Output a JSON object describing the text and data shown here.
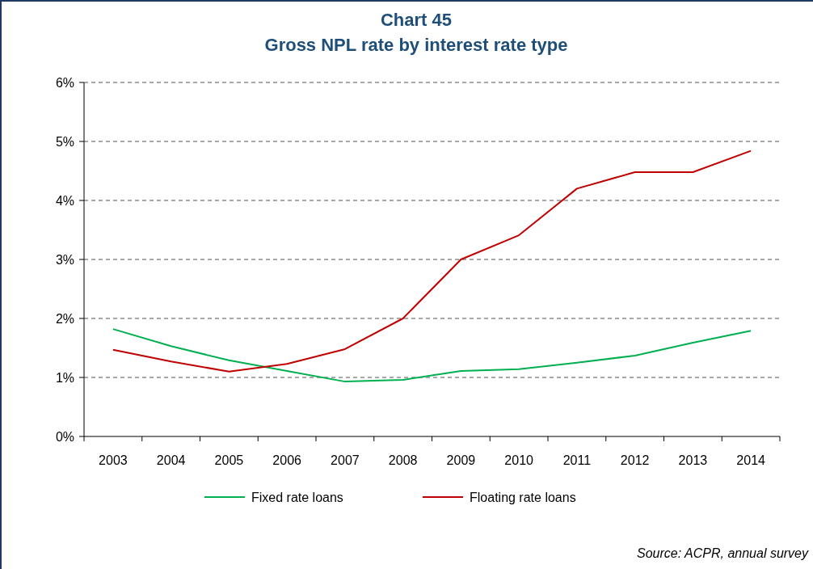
{
  "chart_data": {
    "type": "line",
    "title": "Chart 45",
    "subtitle": "Gross NPL rate by interest rate type",
    "categories": [
      "2003",
      "2004",
      "2005",
      "2006",
      "2007",
      "2008",
      "2009",
      "2010",
      "2011",
      "2012",
      "2013",
      "2014"
    ],
    "series": [
      {
        "name": "Fixed rate loans",
        "color": "#00b050",
        "values": [
          1.82,
          1.53,
          1.29,
          1.11,
          0.93,
          0.96,
          1.11,
          1.14,
          1.25,
          1.37,
          1.59,
          1.79
        ]
      },
      {
        "name": "Floating rate loans",
        "color": "#c00000",
        "values": [
          1.47,
          1.27,
          1.1,
          1.23,
          1.48,
          2.0,
          3.0,
          3.41,
          4.2,
          4.48,
          4.48,
          4.84
        ]
      }
    ],
    "ylim": [
      0,
      6
    ],
    "yticks": [
      {
        "value": 0,
        "label": "0%"
      },
      {
        "value": 1,
        "label": "1%"
      },
      {
        "value": 2,
        "label": "2%"
      },
      {
        "value": 3,
        "label": "3%"
      },
      {
        "value": 4,
        "label": "4%"
      },
      {
        "value": 5,
        "label": "5%"
      },
      {
        "value": 6,
        "label": "6%"
      }
    ],
    "grid": "y",
    "legend": "bottom",
    "marker": "none",
    "line_style": "solid",
    "annotations": [
      "Source: ACPR, annual survey"
    ]
  }
}
